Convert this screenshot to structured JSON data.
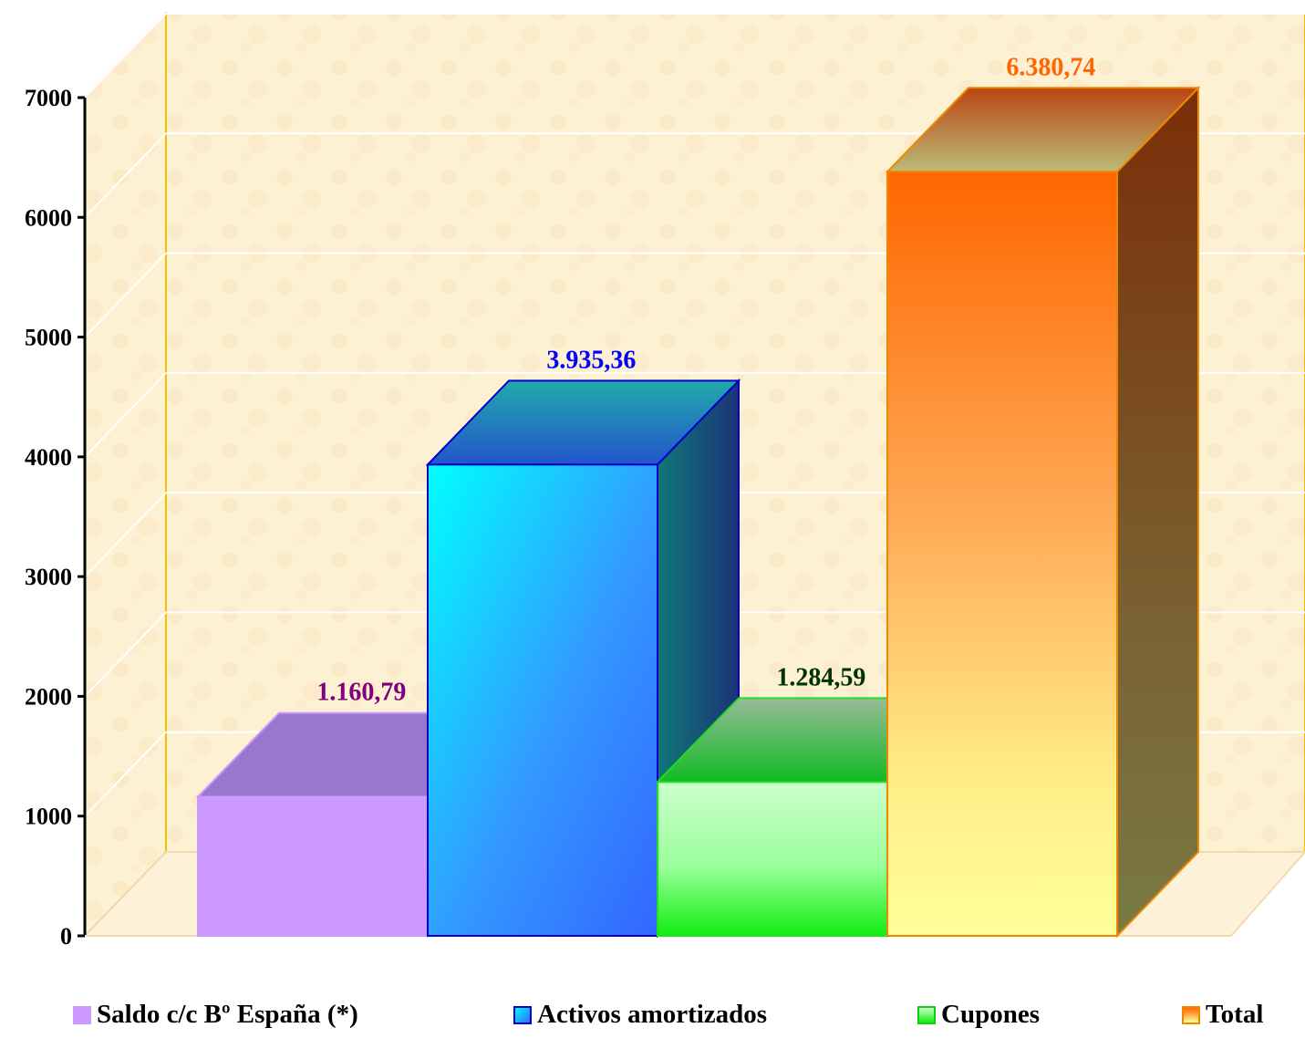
{
  "chart_data": {
    "type": "bar",
    "categories": [
      "Saldo c/c Bº España (*)",
      "Activos amortizados",
      "Cupones",
      "Total"
    ],
    "values": [
      1160.79,
      3935.36,
      1284.59,
      6380.74
    ],
    "value_labels": [
      "1.160,79",
      "3.935,36",
      "1.284,59",
      "6.380,74"
    ],
    "ylim": [
      0,
      7000
    ],
    "yticks": [
      "0",
      "1000",
      "2000",
      "3000",
      "4000",
      "5000",
      "6000",
      "7000"
    ],
    "xlabel": "",
    "ylabel": "",
    "grid": true,
    "legend": "bottom",
    "style": "3d"
  },
  "colors": {
    "series": [
      "#cc99ff",
      "#3399ff",
      "#33ee33",
      "#ff8a1a"
    ],
    "label_colors": [
      "#800080",
      "#0000ff",
      "#003300",
      "#ff6600"
    ],
    "wall": "#fcefcf",
    "wall_border": "#f2c000"
  }
}
